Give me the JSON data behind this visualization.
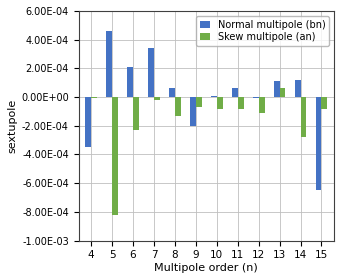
{
  "categories": [
    4,
    5,
    6,
    7,
    8,
    9,
    10,
    11,
    12,
    13,
    14,
    15
  ],
  "bn": [
    -0.00035,
    0.00046,
    0.00021,
    0.00034,
    6.5e-05,
    -0.0002,
    5e-06,
    6e-05,
    -1e-05,
    0.00011,
    0.00012,
    -0.00065
  ],
  "an": [
    -5e-06,
    -0.00082,
    -0.00023,
    -2e-05,
    -0.00013,
    -7e-05,
    -8e-05,
    -8e-05,
    -0.00011,
    6e-05,
    -0.00028,
    -8e-05
  ],
  "bn_color": "#4472C4",
  "an_color": "#70AD47",
  "ylabel": "sextupole",
  "xlabel": "Multipole order (n)",
  "ylim": [
    -0.001,
    0.0006
  ],
  "yticks": [
    -0.001,
    -0.0008,
    -0.0006,
    -0.0004,
    -0.0002,
    0.0,
    0.0002,
    0.0004,
    0.0006
  ],
  "legend_bn": "Normal multipole (bn)",
  "legend_an": "Skew multipole (an)",
  "bg_color": "#ffffff",
  "grid_color": "#bfbfbf",
  "bar_width": 0.28,
  "figsize": [
    3.41,
    2.8
  ],
  "dpi": 100
}
